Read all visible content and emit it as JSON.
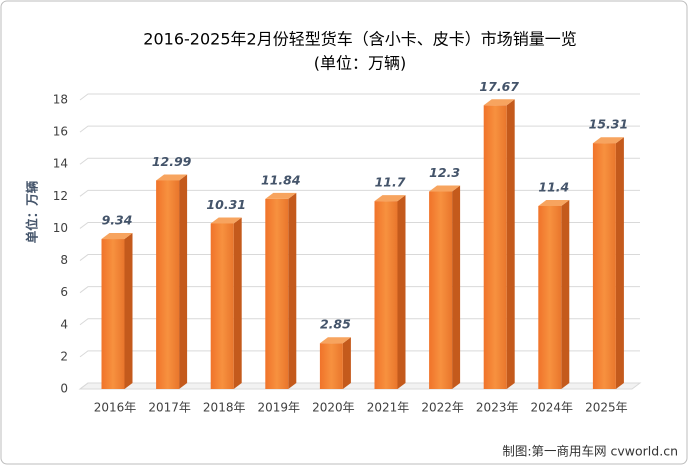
{
  "chart_data": {
    "type": "bar3d",
    "title": "2016-2025年2月份轻型货车（含小卡、皮卡）市场销量一览",
    "subtitle": "(单位：万辆)",
    "y_label": "单位：万辆",
    "source": "制图:第一商用车网 cvworld.cn",
    "categories": [
      "2016年",
      "2017年",
      "2018年",
      "2019年",
      "2020年",
      "2021年",
      "2022年",
      "2023年",
      "2024年",
      "2025年"
    ],
    "values": [
      9.34,
      12.99,
      10.31,
      11.84,
      2.85,
      11.7,
      12.3,
      17.67,
      11.4,
      15.31
    ],
    "color": "#f0832f",
    "ylim": [
      0,
      18
    ],
    "yticks": [
      0,
      2,
      4,
      6,
      8,
      10,
      12,
      14,
      16,
      18
    ],
    "grid": true
  }
}
